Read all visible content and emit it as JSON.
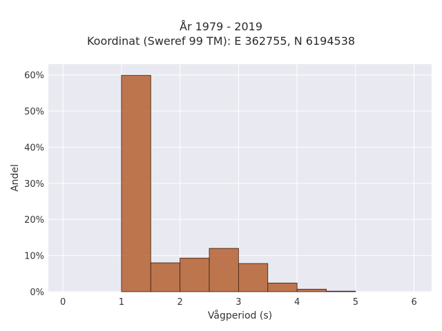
{
  "chart_data": {
    "type": "bar",
    "title": "År 1979 - 2019",
    "subtitle": "Koordinat (Sweref 99 TM): E 362755, N 6194538",
    "xlabel": "Vågperiod (s)",
    "ylabel": "Andel",
    "xlim": [
      -0.25,
      6.3
    ],
    "ylim": [
      0,
      63
    ],
    "x_ticks": [
      0,
      1,
      2,
      3,
      4,
      5,
      6
    ],
    "y_ticks": [
      0,
      10,
      20,
      30,
      40,
      50,
      60
    ],
    "y_tick_suffix": "%",
    "grid": true,
    "bin_width": 0.5,
    "bins": [
      {
        "start": 1.0,
        "end": 1.5,
        "value": 59.9
      },
      {
        "start": 1.5,
        "end": 2.0,
        "value": 8.0
      },
      {
        "start": 2.0,
        "end": 2.5,
        "value": 9.3
      },
      {
        "start": 2.5,
        "end": 3.0,
        "value": 12.0
      },
      {
        "start": 3.0,
        "end": 3.5,
        "value": 7.8
      },
      {
        "start": 3.5,
        "end": 4.0,
        "value": 2.4
      },
      {
        "start": 4.0,
        "end": 4.5,
        "value": 0.7
      },
      {
        "start": 4.5,
        "end": 5.0,
        "value": 0.15
      }
    ],
    "bar_color": "#b8683b",
    "bar_edge_color": "#3a1f10",
    "plot_bg": "#e9e9f1",
    "grid_color": "#ffffff"
  }
}
